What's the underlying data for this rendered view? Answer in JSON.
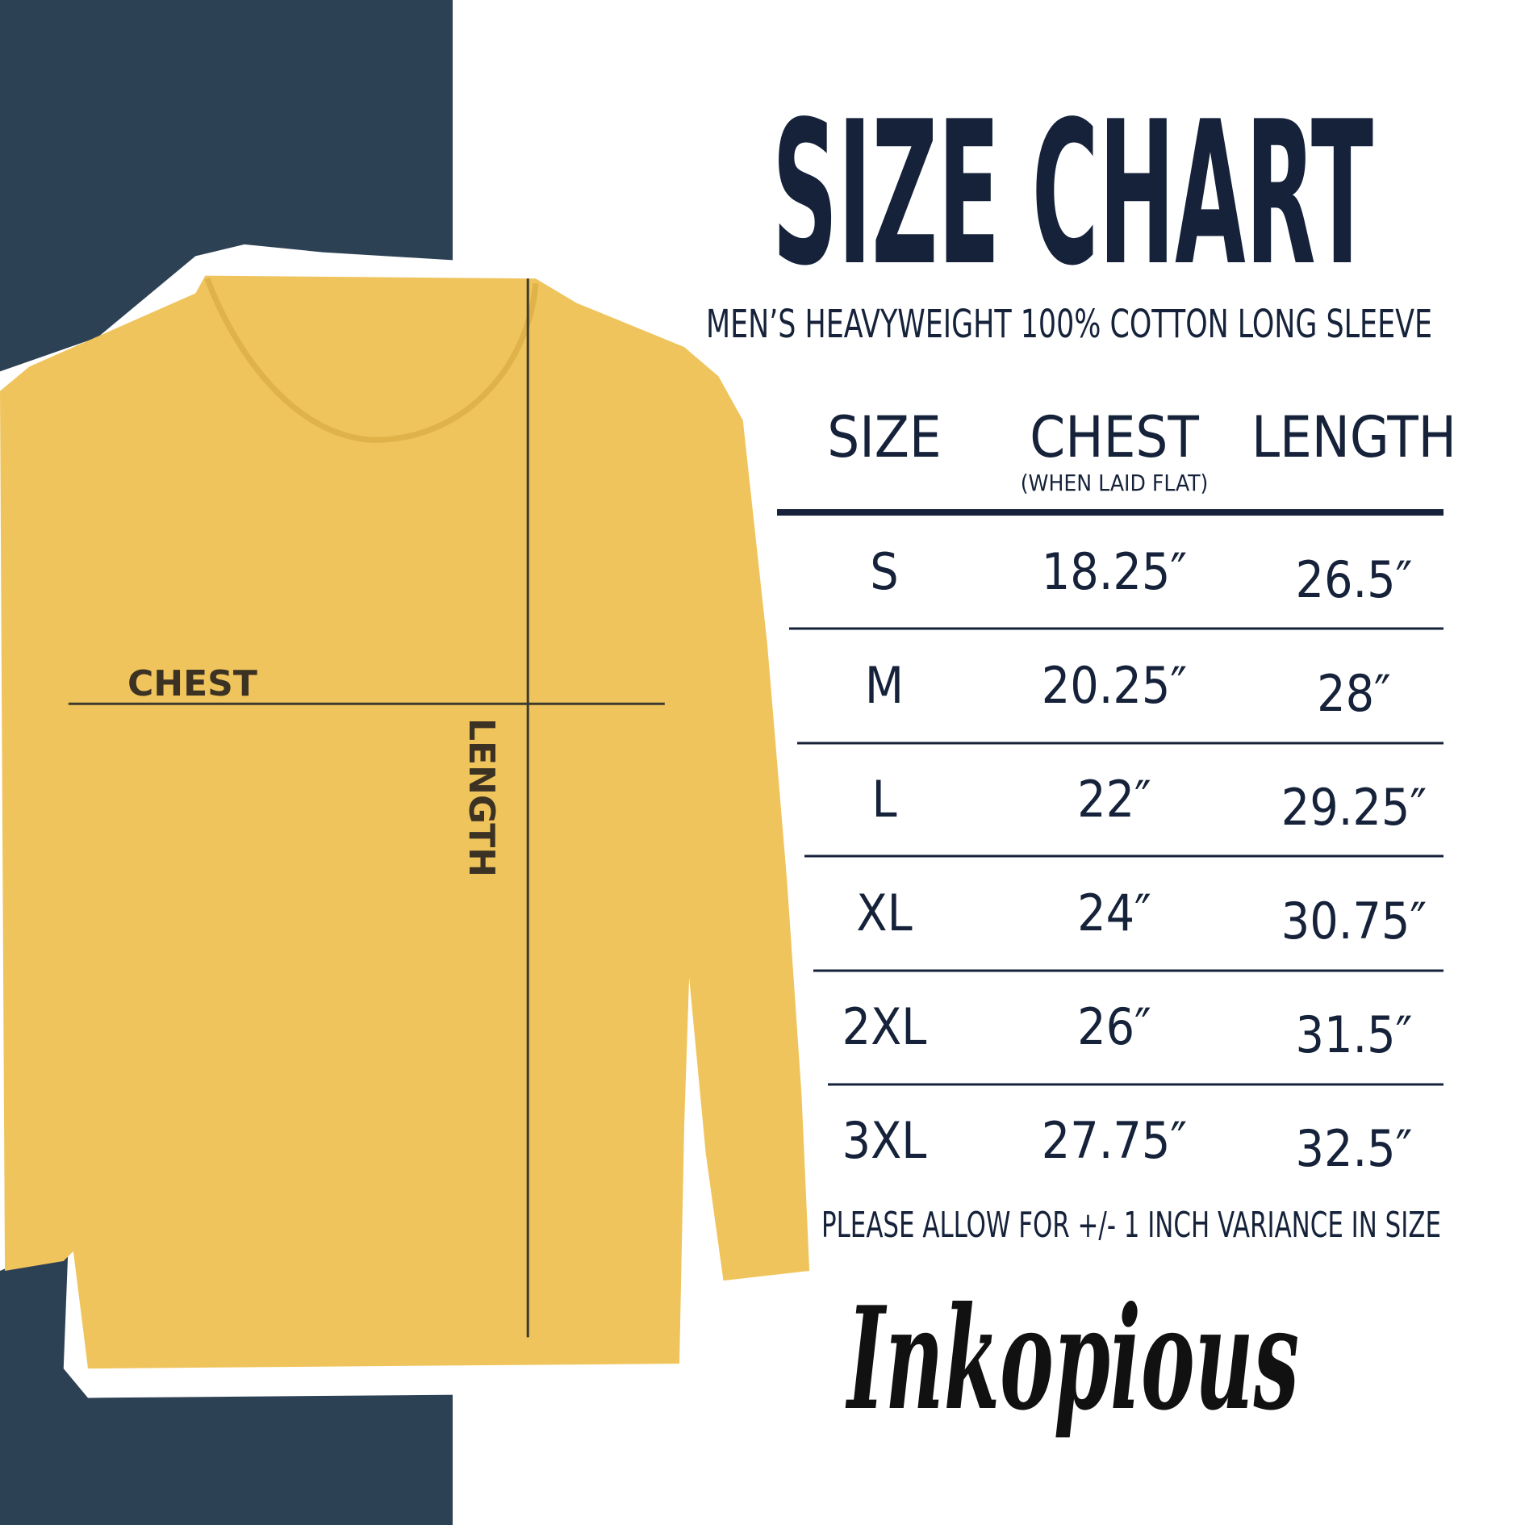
{
  "header": {
    "title": "SIZE CHART",
    "subtitle": "MEN’S HEAVYWEIGHT 100% COTTON LONG SLEEVE"
  },
  "table": {
    "columns": [
      {
        "label": "SIZE"
      },
      {
        "label": "CHEST",
        "note": "(WHEN LAID FLAT)"
      },
      {
        "label": "LENGTH"
      }
    ],
    "rows": [
      [
        "S",
        "18.25″",
        "26.5″"
      ],
      [
        "M",
        "20.25″",
        "28″"
      ],
      [
        "L",
        "22″",
        "29.25″"
      ],
      [
        "XL",
        "24″",
        "30.75″"
      ],
      [
        "2XL",
        "26″",
        "31.5″"
      ],
      [
        "3XL",
        "27.75″",
        "32.5″"
      ]
    ]
  },
  "note": "PLEASE ALLOW FOR +/- 1 INCH VARIANCE IN SIZE",
  "diagram": {
    "chest_label": "CHEST",
    "length_label": "LENGTH"
  },
  "brand": {
    "name": "Inkopious"
  }
}
